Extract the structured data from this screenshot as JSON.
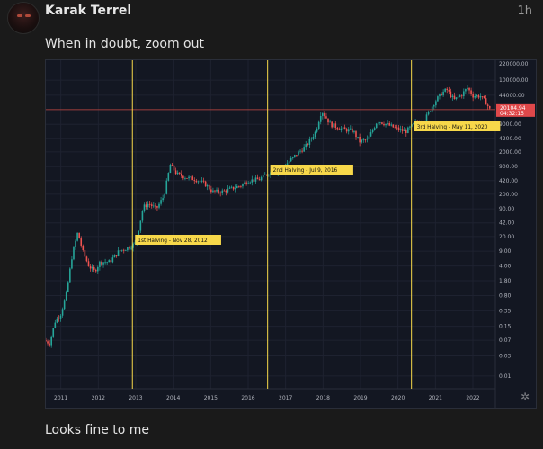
{
  "post": {
    "author": "Karak Terrel",
    "time": "1h",
    "paragraphs": [
      "When in doubt, zoom out",
      "Looks fine to me"
    ]
  },
  "chart_data": {
    "type": "candlestick",
    "scale": "log",
    "ylim": [
      0.005,
      200000
    ],
    "x_range": [
      2010.6,
      2022.6
    ],
    "grid": true,
    "y_ticks": [
      100000,
      44000,
      20104.94,
      9000,
      4200,
      2000,
      900,
      420,
      200,
      90.0,
      42.0,
      20.0,
      9.0,
      4.0,
      1.8,
      0.8,
      0.35,
      0.15,
      0.07,
      0.03,
      0.01
    ],
    "y_tick_labels": [
      "100000.00",
      "44000.00",
      "20104.94",
      "9000.00",
      "4200.00",
      "2000.00",
      "900.00",
      "420.00",
      "200.00",
      "90.00",
      "42.00",
      "20.00",
      "9.00",
      "4.00",
      "1.80",
      "0.80",
      "0.35",
      "0.15",
      "0.07",
      "0.03",
      "0.01"
    ],
    "top_label": "220000.00",
    "x_tick_years": [
      2011,
      2012,
      2013,
      2014,
      2015,
      2016,
      2017,
      2018,
      2019,
      2020,
      2021,
      2022
    ],
    "x_tick_labels": [
      "2011",
      "2012",
      "2013",
      "2014",
      "2015",
      "2016",
      "2017",
      "2018",
      "2019",
      "2020",
      "2021",
      "2022"
    ],
    "current_price": 20104.94,
    "current_price_label": "20104.94",
    "countdown_label": "04:32:15",
    "colors": {
      "up": "#26a69a",
      "down": "#ef5350",
      "halving_line": "#f7d84a",
      "price_line": "#c8473f",
      "bg": "#131722"
    },
    "halvings": [
      {
        "label": "1st Halving - Nov 28, 2012",
        "year": 2012.91
      },
      {
        "label": "2nd Halving - Jul 9, 2016",
        "year": 2016.52
      },
      {
        "label": "3rd Halving - May 11, 2020",
        "year": 2020.36
      }
    ],
    "series": [
      {
        "t": 2010.55,
        "v": 0.07
      },
      {
        "t": 2010.7,
        "v": 0.06
      },
      {
        "t": 2010.85,
        "v": 0.2
      },
      {
        "t": 2011.0,
        "v": 0.3
      },
      {
        "t": 2011.15,
        "v": 0.9
      },
      {
        "t": 2011.3,
        "v": 7
      },
      {
        "t": 2011.45,
        "v": 25
      },
      {
        "t": 2011.6,
        "v": 8
      },
      {
        "t": 2011.75,
        "v": 4
      },
      {
        "t": 2011.9,
        "v": 3
      },
      {
        "t": 2012.05,
        "v": 5
      },
      {
        "t": 2012.3,
        "v": 5
      },
      {
        "t": 2012.55,
        "v": 9
      },
      {
        "t": 2012.8,
        "v": 11
      },
      {
        "t": 2013.0,
        "v": 14
      },
      {
        "t": 2013.2,
        "v": 100
      },
      {
        "t": 2013.35,
        "v": 120
      },
      {
        "t": 2013.55,
        "v": 90
      },
      {
        "t": 2013.75,
        "v": 180
      },
      {
        "t": 2013.92,
        "v": 1000
      },
      {
        "t": 2014.1,
        "v": 600
      },
      {
        "t": 2014.35,
        "v": 500
      },
      {
        "t": 2014.6,
        "v": 450
      },
      {
        "t": 2014.85,
        "v": 350
      },
      {
        "t": 2015.05,
        "v": 230
      },
      {
        "t": 2015.3,
        "v": 230
      },
      {
        "t": 2015.55,
        "v": 270
      },
      {
        "t": 2015.8,
        "v": 320
      },
      {
        "t": 2016.0,
        "v": 420
      },
      {
        "t": 2016.3,
        "v": 450
      },
      {
        "t": 2016.55,
        "v": 650
      },
      {
        "t": 2016.8,
        "v": 700
      },
      {
        "t": 2017.0,
        "v": 1000
      },
      {
        "t": 2017.3,
        "v": 1800
      },
      {
        "t": 2017.55,
        "v": 2800
      },
      {
        "t": 2017.8,
        "v": 6000
      },
      {
        "t": 2017.96,
        "v": 19000
      },
      {
        "t": 2018.2,
        "v": 9000
      },
      {
        "t": 2018.5,
        "v": 7000
      },
      {
        "t": 2018.8,
        "v": 6300
      },
      {
        "t": 2018.98,
        "v": 3500
      },
      {
        "t": 2019.2,
        "v": 4000
      },
      {
        "t": 2019.45,
        "v": 11000
      },
      {
        "t": 2019.7,
        "v": 9000
      },
      {
        "t": 2019.95,
        "v": 7200
      },
      {
        "t": 2020.2,
        "v": 6000
      },
      {
        "t": 2020.45,
        "v": 9500
      },
      {
        "t": 2020.7,
        "v": 11000
      },
      {
        "t": 2020.95,
        "v": 28000
      },
      {
        "t": 2021.15,
        "v": 48000
      },
      {
        "t": 2021.3,
        "v": 60000
      },
      {
        "t": 2021.5,
        "v": 34000
      },
      {
        "t": 2021.7,
        "v": 45000
      },
      {
        "t": 2021.85,
        "v": 66000
      },
      {
        "t": 2022.0,
        "v": 43000
      },
      {
        "t": 2022.2,
        "v": 42000
      },
      {
        "t": 2022.35,
        "v": 30000
      },
      {
        "t": 2022.45,
        "v": 20104.94
      }
    ]
  }
}
